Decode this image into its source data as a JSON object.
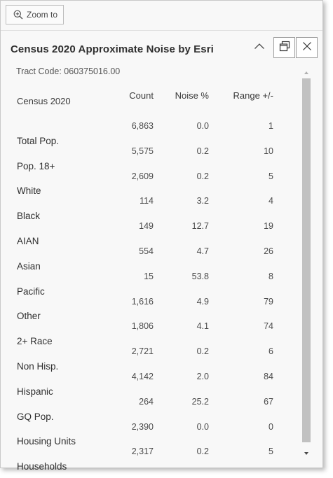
{
  "toolbar": {
    "zoom_label": "Zoom to"
  },
  "popup": {
    "title": "Census 2020 Approximate Noise by Esri",
    "tract_label": "Tract Code: 060375016.00"
  },
  "table": {
    "headers": [
      "Census 2020",
      "Count",
      "Noise %",
      "Range +/-"
    ],
    "rows": [
      {
        "label": "Total Pop.",
        "count": "6,863",
        "noise": "0.0",
        "range": "1"
      },
      {
        "label": "Pop. 18+",
        "count": "5,575",
        "noise": "0.2",
        "range": "10"
      },
      {
        "label": "White",
        "count": "2,609",
        "noise": "0.2",
        "range": "5"
      },
      {
        "label": "Black",
        "count": "114",
        "noise": "3.2",
        "range": "4"
      },
      {
        "label": "AIAN",
        "count": "149",
        "noise": "12.7",
        "range": "19"
      },
      {
        "label": "Asian",
        "count": "554",
        "noise": "4.7",
        "range": "26"
      },
      {
        "label": "Pacific",
        "count": "15",
        "noise": "53.8",
        "range": "8"
      },
      {
        "label": "Other",
        "count": "1,616",
        "noise": "4.9",
        "range": "79"
      },
      {
        "label": "2+ Race",
        "count": "1,806",
        "noise": "4.1",
        "range": "74"
      },
      {
        "label": "Non Hisp.",
        "count": "2,721",
        "noise": "0.2",
        "range": "6"
      },
      {
        "label": "Hispanic",
        "count": "4,142",
        "noise": "2.0",
        "range": "84"
      },
      {
        "label": "GQ Pop.",
        "count": "264",
        "noise": "25.2",
        "range": "67"
      },
      {
        "label": "Housing Units",
        "count": "2,390",
        "noise": "0.0",
        "range": "0"
      },
      {
        "label": "Households",
        "count": "2,317",
        "noise": "0.2",
        "range": "5"
      }
    ]
  },
  "icons": {
    "zoom": "zoom-in-icon",
    "collapse": "chevron-up-icon",
    "dock": "dock-icon",
    "close": "close-icon",
    "scroll_up": "scroll-up-arrow-icon",
    "scroll_down": "scroll-down-arrow-icon"
  },
  "colors": {
    "panel": "#f8f8f8",
    "scrollbar": "#c1c1c1",
    "text": "#323232"
  }
}
